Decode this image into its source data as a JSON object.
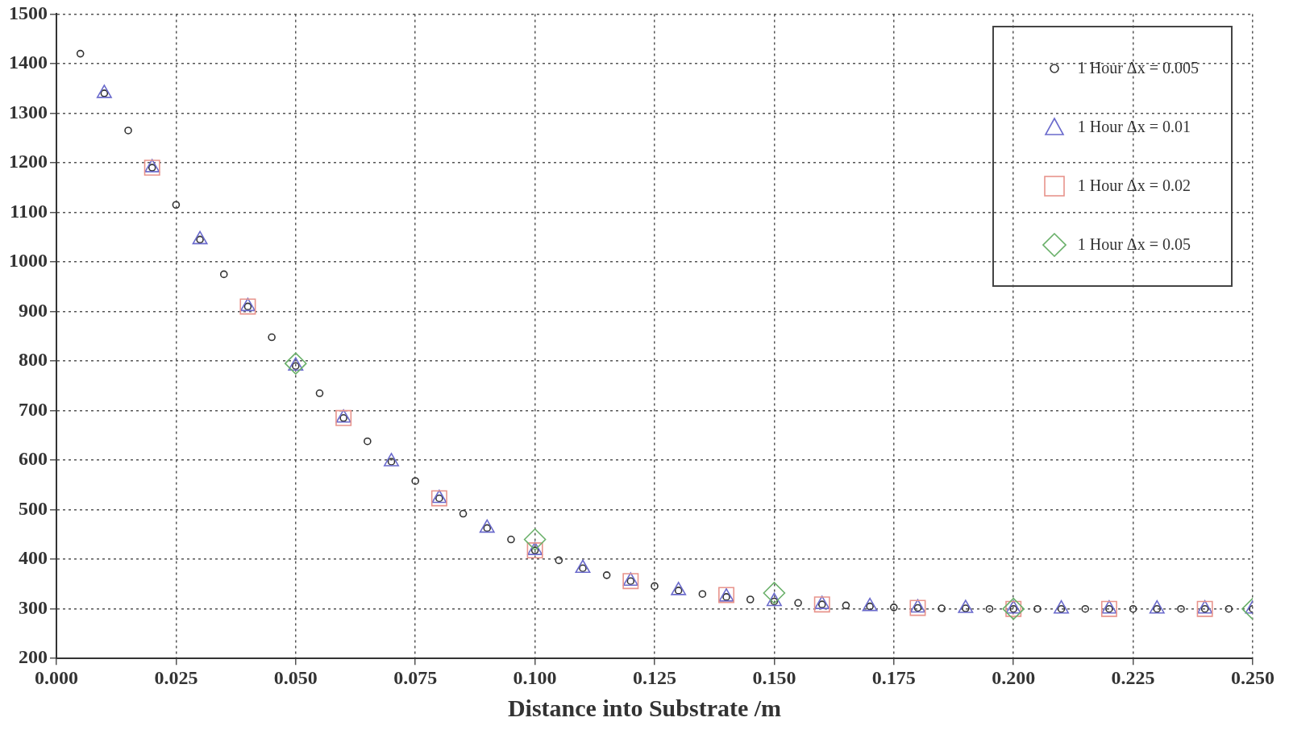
{
  "chart_data": {
    "type": "scatter",
    "xlabel": "Distance into Substrate /m",
    "series": [
      {
        "name": "1 Hour Δx = 0.005",
        "color": "#333333",
        "marker": "circle",
        "x": [
          0.005,
          0.01,
          0.015,
          0.02,
          0.025,
          0.03,
          0.035,
          0.04,
          0.045,
          0.05,
          0.055,
          0.06,
          0.065,
          0.07,
          0.075,
          0.08,
          0.085,
          0.09,
          0.095,
          0.1,
          0.105,
          0.11,
          0.115,
          0.12,
          0.125,
          0.13,
          0.135,
          0.14,
          0.145,
          0.15,
          0.155,
          0.16,
          0.165,
          0.17,
          0.175,
          0.18,
          0.185,
          0.19,
          0.195,
          0.2,
          0.205,
          0.21,
          0.215,
          0.22,
          0.225,
          0.23,
          0.235,
          0.24,
          0.245,
          0.25
        ],
        "values": [
          1420,
          1340,
          1265,
          1190,
          1115,
          1045,
          975,
          910,
          848,
          790,
          735,
          685,
          638,
          597,
          558,
          523,
          492,
          463,
          440,
          418,
          398,
          382,
          368,
          356,
          346,
          337,
          330,
          324,
          319,
          315,
          312,
          309,
          307,
          305,
          303,
          302,
          301,
          301,
          300,
          300,
          300,
          300,
          300,
          300,
          300,
          300,
          300,
          300,
          300,
          300
        ]
      },
      {
        "name": "1 Hour Δx = 0.01",
        "color": "#6a6acc",
        "marker": "triangle",
        "x": [
          0.01,
          0.02,
          0.03,
          0.04,
          0.05,
          0.06,
          0.07,
          0.08,
          0.09,
          0.1,
          0.11,
          0.12,
          0.13,
          0.14,
          0.15,
          0.16,
          0.17,
          0.18,
          0.19,
          0.2,
          0.21,
          0.22,
          0.23,
          0.24,
          0.25
        ],
        "values": [
          1340,
          1190,
          1045,
          910,
          790,
          685,
          597,
          523,
          463,
          418,
          382,
          356,
          337,
          324,
          315,
          309,
          305,
          302,
          301,
          300,
          300,
          300,
          300,
          300,
          300
        ]
      },
      {
        "name": "1 Hour Δx = 0.02",
        "color": "#e8948c",
        "marker": "square",
        "x": [
          0.02,
          0.04,
          0.06,
          0.08,
          0.1,
          0.12,
          0.14,
          0.16,
          0.18,
          0.2,
          0.22,
          0.24
        ],
        "values": [
          1190,
          910,
          685,
          523,
          418,
          356,
          328,
          309,
          302,
          300,
          300,
          300
        ]
      },
      {
        "name": "1 Hour Δx = 0.05",
        "color": "#6ab06a",
        "marker": "diamond",
        "x": [
          0.05,
          0.1,
          0.15,
          0.2,
          0.25
        ],
        "values": [
          795,
          440,
          332,
          300,
          300
        ]
      }
    ],
    "xlim": [
      0,
      0.25
    ],
    "xticks": [
      {
        "value": 0,
        "label": "0.000"
      },
      {
        "value": 0.025,
        "label": "0.025"
      },
      {
        "value": 0.05,
        "label": "0.050"
      },
      {
        "value": 0.075,
        "label": "0.075"
      },
      {
        "value": 0.1,
        "label": "0.100"
      },
      {
        "value": 0.125,
        "label": "0.125"
      },
      {
        "value": 0.15,
        "label": "0.150"
      },
      {
        "value": 0.175,
        "label": "0.175"
      },
      {
        "value": 0.2,
        "label": "0.200"
      },
      {
        "value": 0.225,
        "label": "0.225"
      },
      {
        "value": 0.25,
        "label": "0.250"
      }
    ],
    "ylim": [
      200,
      1500
    ],
    "yticks": [
      200,
      300,
      400,
      500,
      600,
      700,
      800,
      900,
      1000,
      1100,
      1200,
      1300,
      1400,
      1500
    ],
    "grid": true,
    "legend": "top right",
    "line_style": "dotted"
  }
}
